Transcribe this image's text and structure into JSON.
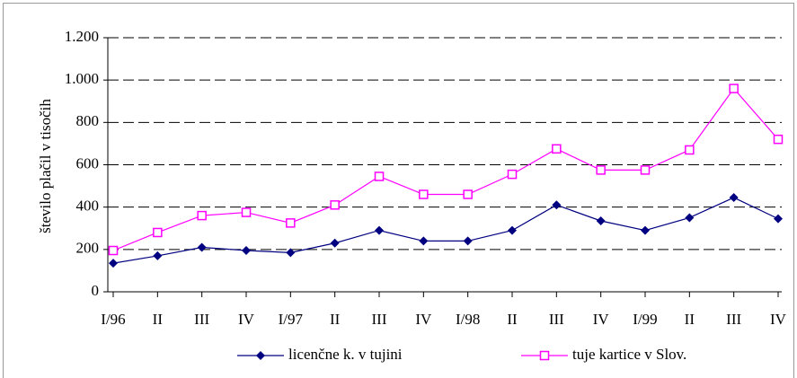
{
  "chart_data": {
    "type": "line",
    "y_label": "število plačil v tisočih",
    "categories": [
      "I/96",
      "II",
      "III",
      "IV",
      "I/97",
      "II",
      "III",
      "IV",
      "I/98",
      "II",
      "III",
      "IV",
      "I/99",
      "II",
      "III",
      "IV"
    ],
    "series": [
      {
        "name": "licenčne k. v tujini",
        "color": "#000080",
        "marker": "diamond",
        "values": [
          135,
          170,
          210,
          195,
          185,
          230,
          290,
          240,
          240,
          290,
          410,
          335,
          290,
          350,
          445,
          345
        ]
      },
      {
        "name": "tuje kartice v Slov.",
        "color": "#ff00ff",
        "marker": "square",
        "values": [
          195,
          280,
          360,
          375,
          325,
          410,
          545,
          460,
          460,
          555,
          675,
          575,
          575,
          670,
          960,
          720
        ]
      }
    ],
    "ylim": [
      0,
      1200
    ],
    "yticks": [
      0,
      200,
      400,
      600,
      800,
      {
        "value": 1000,
        "label": "1.000"
      },
      {
        "value": 1200,
        "label": "1.200"
      }
    ],
    "grid": true,
    "legend": "bottom"
  }
}
